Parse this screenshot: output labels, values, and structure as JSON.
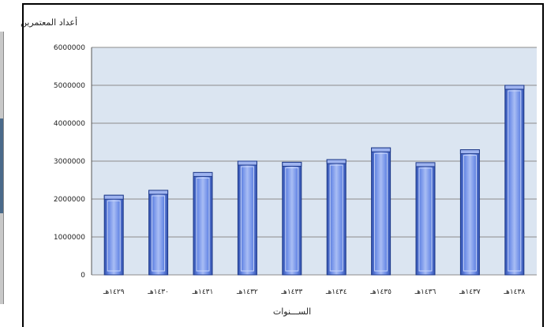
{
  "chart_data": {
    "type": "bar",
    "title": "",
    "ylabel": "أعداد المعتمرين",
    "xlabel": "الســـنوات",
    "categories": [
      "١٤٢٩هـ",
      "١٤٣٠هـ",
      "١٤٣١هـ",
      "١٤٣٢هـ",
      "١٤٣٣هـ",
      "١٤٣٤هـ",
      "١٤٣٥هـ",
      "١٤٣٦هـ",
      "١٤٣٧هـ",
      "١٤٣٨هـ"
    ],
    "values": [
      2100000,
      2230000,
      2700000,
      3000000,
      2970000,
      3040000,
      3350000,
      2960000,
      3300000,
      5000000
    ],
    "ylim": [
      0,
      6000000
    ],
    "yticks": [
      0,
      1000000,
      2000000,
      3000000,
      4000000,
      5000000,
      6000000
    ],
    "ytick_labels": [
      "0",
      "1000000",
      "2000000",
      "3000000",
      "4000000",
      "5000000",
      "6000000"
    ],
    "grid": true,
    "legend": "none",
    "colors": {
      "plot_background": "#dbe5f1",
      "bar_fill": "#4f6fd0",
      "bar_highlight": "#9fb4f0",
      "bar_border": "#1f3a8a",
      "gridline": "#8c8c8c"
    }
  }
}
